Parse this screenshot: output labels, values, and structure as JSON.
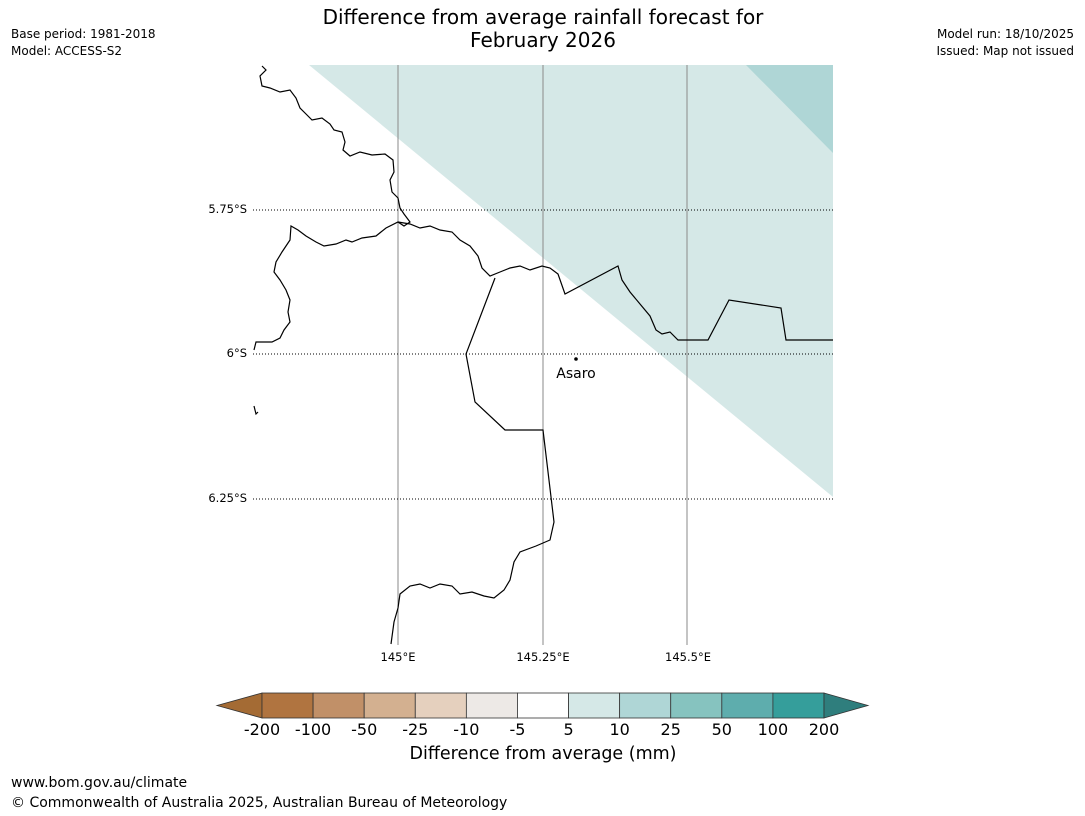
{
  "title_line1": "Difference from average rainfall forecast for",
  "title_line2": "February 2026",
  "header_left": {
    "base_period": "Base period: 1981-2018",
    "model": "Model: ACCESS-S2"
  },
  "header_right": {
    "model_run": "Model run: 18/10/2025",
    "issued": "Issued: Map not issued"
  },
  "map": {
    "lat_labels": [
      "5.75°S",
      "6°S",
      "6.25°S"
    ],
    "lon_labels": [
      "145°E",
      "145.25°E",
      "145.5°E"
    ],
    "place": {
      "name": "Asaro"
    },
    "shading_colors": {
      "band_5_10": "#d5e8e7",
      "band_10_25": "#afd6d6"
    }
  },
  "colorbar": {
    "title": "Difference from average (mm)",
    "tick_labels": [
      "-200",
      "-100",
      "-50",
      "-25",
      "-10",
      "-5",
      "5",
      "10",
      "25",
      "50",
      "100",
      "200"
    ],
    "colors": [
      "#a46b34",
      "#b07440",
      "#c19068",
      "#d3b090",
      "#e5d0be",
      "#ede9e6",
      "#ffffff",
      "#d5e8e7",
      "#afd6d6",
      "#86c3bf",
      "#5eadad",
      "#359e9b",
      "#2f7e7d"
    ]
  },
  "footer": {
    "url": "www.bom.gov.au/climate",
    "copyright": "© Commonwealth of Australia 2025, Australian Bureau of Meteorology"
  }
}
